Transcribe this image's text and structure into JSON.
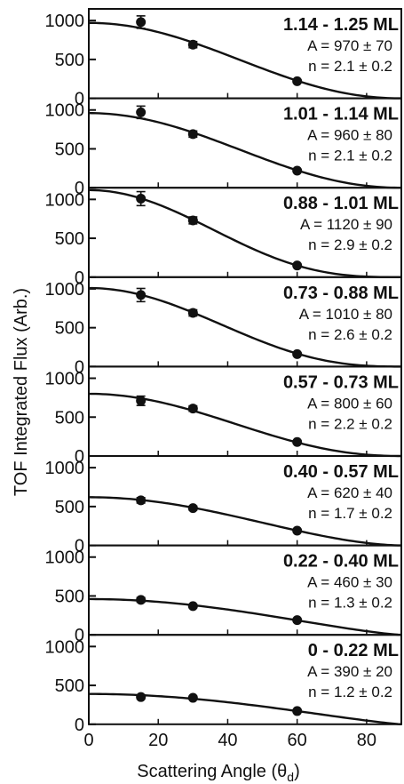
{
  "figure": {
    "xlabel_text": "Scattering Angle (θ",
    "xlabel_sub": "d",
    "xlabel_close": ")",
    "ylabel": "TOF Integrated Flux (Arb.)"
  },
  "chart_data": {
    "type": "scatter",
    "layout": "vertically stacked panels sharing x axis",
    "x_ticks": [
      0,
      20,
      40,
      60,
      80
    ],
    "xlim": [
      0,
      90
    ],
    "ylim": [
      0,
      1150
    ],
    "y_ticks": [
      0,
      500,
      1000
    ],
    "model": "y = A * cos(x)^n",
    "panels": [
      {
        "label": "1.14 - 1.25 ML",
        "A_text": "A = 970 ± 70",
        "n_text": "n = 2.1 ± 0.2",
        "A": 970,
        "n": 2.1,
        "x": [
          15,
          30,
          60
        ],
        "y": [
          980,
          690,
          220
        ],
        "yerr": [
          80,
          40,
          15
        ]
      },
      {
        "label": "1.01 - 1.14 ML",
        "A_text": "A = 960 ± 80",
        "n_text": "n = 2.1 ± 0.2",
        "A": 960,
        "n": 2.1,
        "x": [
          15,
          30,
          60
        ],
        "y": [
          970,
          690,
          220
        ],
        "yerr": [
          80,
          40,
          15
        ]
      },
      {
        "label": "0.88 - 1.01 ML",
        "A_text": "A = 1120 ± 90",
        "n_text": "n = 2.9 ± 0.2",
        "A": 1120,
        "n": 2.9,
        "x": [
          15,
          30,
          60
        ],
        "y": [
          1010,
          730,
          150
        ],
        "yerr": [
          90,
          45,
          15
        ]
      },
      {
        "label": "0.73 - 0.88 ML",
        "A_text": "A = 1010 ± 80",
        "n_text": "n = 2.6 ± 0.2",
        "A": 1010,
        "n": 2.6,
        "x": [
          15,
          30,
          60
        ],
        "y": [
          920,
          690,
          160
        ],
        "yerr": [
          85,
          40,
          15
        ]
      },
      {
        "label": "0.57 - 0.73 ML",
        "A_text": "A = 800 ± 60",
        "n_text": "n = 2.2 ± 0.2",
        "A": 800,
        "n": 2.2,
        "x": [
          15,
          30,
          60
        ],
        "y": [
          710,
          610,
          180
        ],
        "yerr": [
          60,
          35,
          15
        ]
      },
      {
        "label": "0.40 - 0.57 ML",
        "A_text": "A = 620 ± 40",
        "n_text": "n = 1.7 ± 0.2",
        "A": 620,
        "n": 1.7,
        "x": [
          15,
          30,
          60
        ],
        "y": [
          580,
          480,
          190
        ],
        "yerr": [
          35,
          25,
          15
        ]
      },
      {
        "label": "0.22 - 0.40 ML",
        "A_text": "A = 460 ± 30",
        "n_text": "n = 1.3 ± 0.2",
        "A": 460,
        "n": 1.3,
        "x": [
          15,
          30,
          60
        ],
        "y": [
          450,
          370,
          190
        ],
        "yerr": [
          30,
          20,
          15
        ]
      },
      {
        "label": "0 - 0.22 ML",
        "A_text": "A = 390 ± 20",
        "n_text": "n = 1.2 ± 0.2",
        "A": 390,
        "n": 1.2,
        "x": [
          15,
          30,
          60
        ],
        "y": [
          350,
          340,
          170
        ],
        "yerr": [
          25,
          20,
          15
        ]
      }
    ]
  }
}
